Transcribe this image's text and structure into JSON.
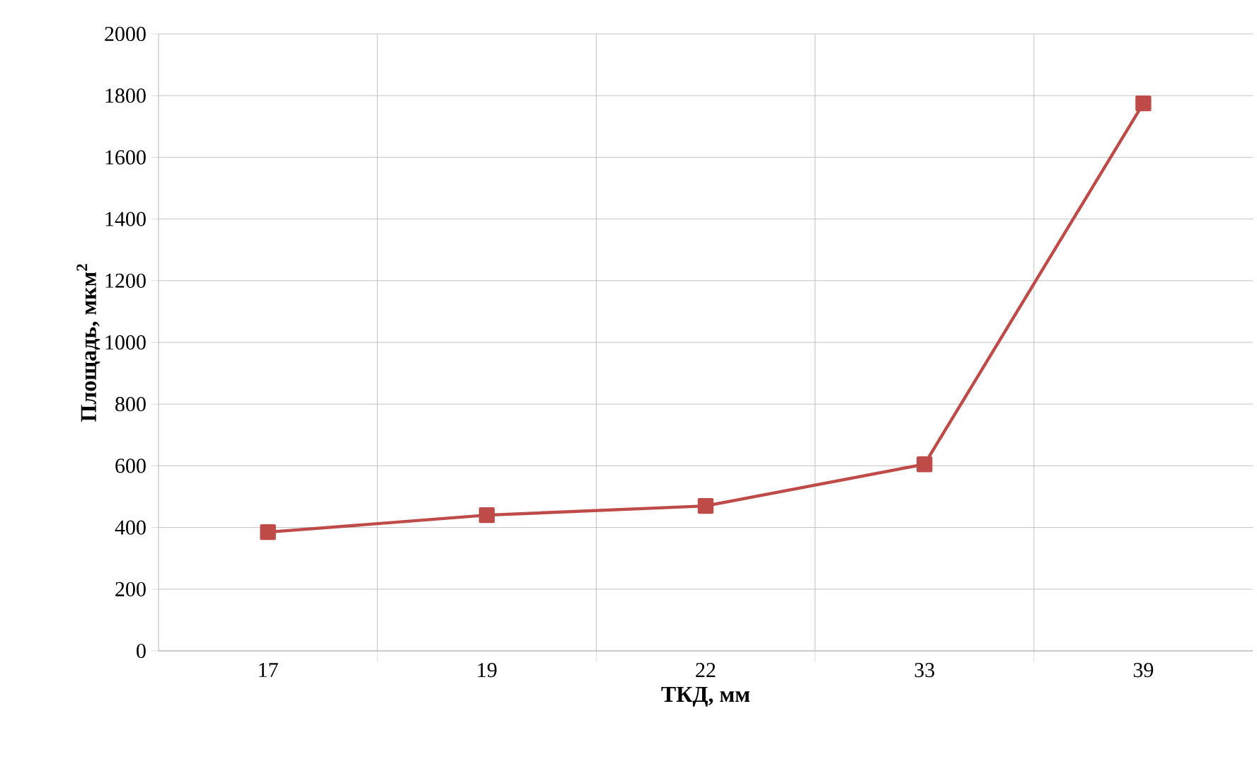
{
  "chart_data": {
    "type": "line",
    "xlabel": "ТКД, мм",
    "ylabel": "Площадь, мкм$^{2}$",
    "categories": [
      "17",
      "19",
      "22",
      "33",
      "39"
    ],
    "series": [
      {
        "color": "#be4b48",
        "values": [
          385,
          440,
          470,
          605,
          1775
        ]
      }
    ],
    "ylim": [
      0,
      2000
    ],
    "yticks": [
      0,
      200,
      400,
      600,
      800,
      1000,
      1200,
      1400,
      1600,
      1800,
      2000
    ],
    "grid": true,
    "marker": "square",
    "line_style": "solid"
  }
}
